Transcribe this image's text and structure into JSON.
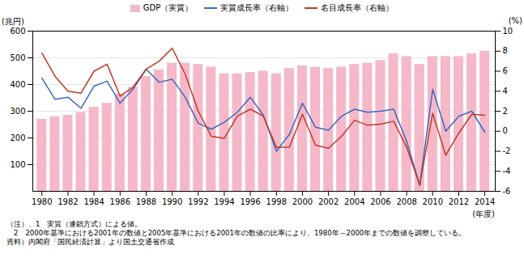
{
  "chart_data": {
    "type": "bar",
    "x": [
      1980,
      1981,
      1982,
      1983,
      1984,
      1985,
      1986,
      1987,
      1988,
      1989,
      1990,
      1991,
      1992,
      1993,
      1994,
      1995,
      1996,
      1997,
      1998,
      1999,
      2000,
      2001,
      2002,
      2003,
      2004,
      2005,
      2006,
      2007,
      2008,
      2009,
      2010,
      2011,
      2012,
      2013,
      2014
    ],
    "xlim": [
      1979.3,
      2014.8
    ],
    "xticks": [
      1980,
      1982,
      1984,
      1986,
      1988,
      1990,
      1992,
      1994,
      1996,
      1998,
      2000,
      2002,
      2004,
      2006,
      2008,
      2010,
      2012,
      2014
    ],
    "xlabel": "(年度)",
    "ylabel": "(兆円)",
    "y2label": "(%)",
    "ylim": [
      0,
      600
    ],
    "yticks": [
      100,
      200,
      300,
      400,
      500,
      600
    ],
    "y2lim": [
      -6,
      10
    ],
    "y2ticks": [
      -6,
      -4,
      -2,
      0,
      2,
      4,
      6,
      8,
      10
    ],
    "grid": true,
    "legend": "top",
    "series": [
      {
        "name": "GDP（実質）",
        "type": "bar",
        "color": "#f5b8c8",
        "values": [
          270,
          280,
          285,
          295,
          315,
          330,
          365,
          390,
          430,
          455,
          480,
          480,
          475,
          465,
          440,
          440,
          445,
          450,
          440,
          460,
          470,
          465,
          460,
          465,
          475,
          480,
          490,
          515,
          505,
          475,
          505,
          505,
          505,
          515,
          525
        ]
      },
      {
        "name": "実質成長率（右軸）",
        "type": "line",
        "axis": "y2",
        "color": "#3a6abf",
        "values": [
          5.3,
          3.2,
          3.4,
          2.3,
          4.5,
          5.0,
          2.8,
          4.2,
          6.2,
          4.9,
          5.2,
          3.4,
          0.8,
          0.2,
          0.9,
          1.9,
          3.4,
          1.6,
          -2.0,
          -0.3,
          2.8,
          0.4,
          0.1,
          1.5,
          2.2,
          1.9,
          2.0,
          2.2,
          -1.0,
          -5.4,
          4.2,
          0.0,
          1.5,
          2.0,
          -0.1
        ]
      },
      {
        "name": "名目成長率（右軸）",
        "type": "line",
        "axis": "y2",
        "color": "#c0392b",
        "values": [
          7.8,
          5.5,
          4.0,
          3.8,
          6.0,
          6.7,
          3.5,
          4.4,
          6.2,
          7.0,
          8.3,
          5.7,
          2.0,
          -0.5,
          -0.7,
          1.5,
          2.2,
          1.5,
          -1.6,
          -1.6,
          1.7,
          -1.4,
          -1.7,
          -0.5,
          1.1,
          0.6,
          0.7,
          1.0,
          -1.6,
          -5.4,
          1.8,
          -2.4,
          -0.2,
          1.7,
          1.6
        ]
      }
    ],
    "annotations": [
      "（注）、1　実質（連鎖方式）による値。",
      "　2　2000年基準における2001年の数値と2005年基準における2001年の数値の比率により、1980年～2000年までの数値を調整している。",
      "資料）内閣府「国民経済計算」より国土交通省作成"
    ]
  }
}
